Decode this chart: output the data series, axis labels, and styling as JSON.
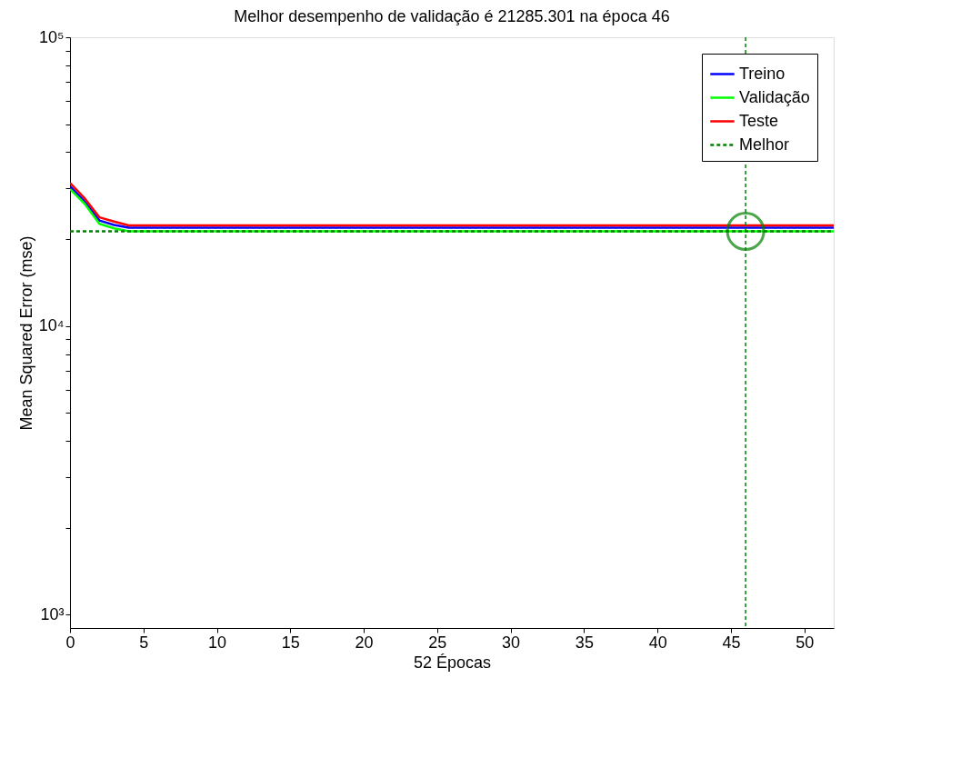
{
  "chart_data": {
    "type": "line",
    "title": "Melhor desempenho de validação é 21285.301 na época 46",
    "xlabel": "52 Épocas",
    "ylabel": "Mean Squared Error  (mse)",
    "x": [
      0,
      1,
      2,
      3,
      4,
      52
    ],
    "series": [
      {
        "name": "Treino",
        "color": "#0000ff",
        "values": [
          30500,
          27000,
          23200,
          22400,
          21900,
          21900
        ]
      },
      {
        "name": "Validação",
        "color": "#00ff00",
        "values": [
          29800,
          26500,
          22600,
          21800,
          21285,
          21285
        ]
      },
      {
        "name": "Teste",
        "color": "#ff0000",
        "values": [
          31300,
          27700,
          23800,
          23000,
          22300,
          22300
        ]
      },
      {
        "type": "scatter",
        "color": "#008000",
        "marker": "circle",
        "x": [
          46
        ],
        "values": [
          21285
        ]
      }
    ],
    "ref_lines": [
      {
        "axis": "y",
        "value": 21285,
        "label": "Melhor",
        "color": "#008000",
        "line_style": "dashed"
      },
      {
        "axis": "x",
        "value": 46,
        "color": "#008000",
        "line_style": "dashed"
      }
    ],
    "log": "y",
    "grid": false,
    "legend": "top right",
    "line_style": "solid",
    "xlim": [
      0,
      52
    ],
    "xticks": [
      0,
      5,
      10,
      15,
      20,
      25,
      30,
      35,
      40,
      45,
      50
    ],
    "ylim": [
      900,
      100000
    ],
    "yticks": [
      {
        "value": 1000,
        "label": "10³"
      },
      {
        "value": 2000,
        "label": null
      },
      {
        "value": 3000,
        "label": null
      },
      {
        "value": 4000,
        "label": null
      },
      {
        "value": 5000,
        "label": null
      },
      {
        "value": 6000,
        "label": null
      },
      {
        "value": 7000,
        "label": null
      },
      {
        "value": 8000,
        "label": null
      },
      {
        "value": 9000,
        "label": null
      },
      {
        "value": 10000,
        "label": "10⁴"
      },
      {
        "value": 20000,
        "label": null
      },
      {
        "value": 30000,
        "label": null
      },
      {
        "value": 40000,
        "label": null
      },
      {
        "value": 50000,
        "label": null
      },
      {
        "value": 60000,
        "label": null
      },
      {
        "value": 70000,
        "label": null
      },
      {
        "value": 80000,
        "label": null
      },
      {
        "value": 90000,
        "label": null
      },
      {
        "value": 100000,
        "label": "10⁵"
      }
    ]
  }
}
